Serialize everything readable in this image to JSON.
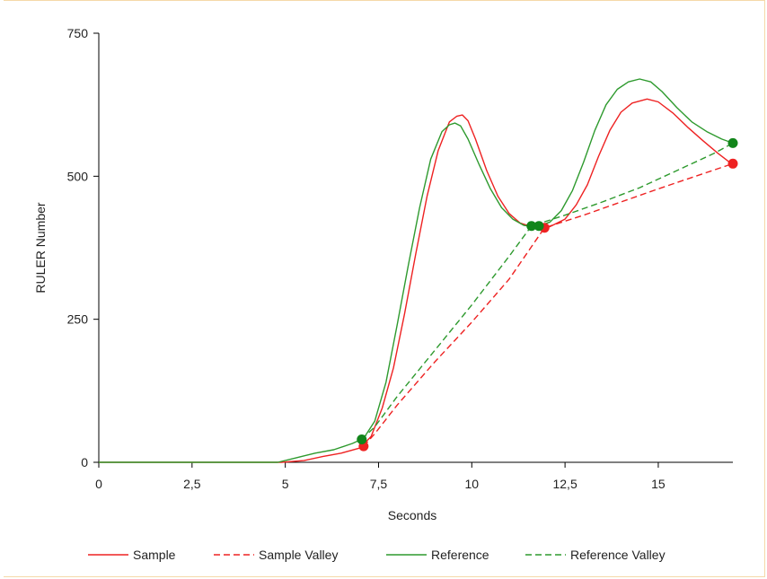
{
  "chart_data": {
    "type": "line",
    "title": "",
    "xlabel": "Seconds",
    "ylabel": "RULER Number",
    "xlim": [
      0,
      17
    ],
    "ylim": [
      0,
      750
    ],
    "x_ticks": [
      {
        "value": 0,
        "label": "0"
      },
      {
        "value": 2.5,
        "label": "2,5"
      },
      {
        "value": 5,
        "label": "5"
      },
      {
        "value": 7.5,
        "label": "7,5"
      },
      {
        "value": 10,
        "label": "10"
      },
      {
        "value": 12.5,
        "label": "12,5"
      },
      {
        "value": 15,
        "label": "15"
      }
    ],
    "y_ticks": [
      {
        "value": 0,
        "label": "0"
      },
      {
        "value": 250,
        "label": "250"
      },
      {
        "value": 500,
        "label": "500"
      },
      {
        "value": 750,
        "label": "750"
      }
    ],
    "grid": false,
    "legend_position": "bottom",
    "series": [
      {
        "name": "Sample",
        "color": "#ee2222",
        "dash": "solid",
        "x": [
          0,
          4.9,
          5.5,
          6.0,
          6.5,
          7.0,
          7.3,
          7.6,
          7.9,
          8.2,
          8.5,
          8.8,
          9.1,
          9.4,
          9.6,
          9.75,
          9.9,
          10.1,
          10.4,
          10.7,
          11.0,
          11.3,
          11.6,
          11.9,
          12.1,
          12.5,
          12.8,
          13.1,
          13.4,
          13.7,
          14.0,
          14.3,
          14.7,
          15.0,
          15.4,
          15.8,
          16.2,
          16.6,
          17.0
        ],
        "y": [
          0,
          0,
          3,
          10,
          16,
          25,
          45,
          95,
          165,
          260,
          365,
          465,
          545,
          595,
          605,
          607,
          597,
          565,
          510,
          465,
          435,
          418,
          412,
          410,
          412,
          425,
          450,
          485,
          535,
          580,
          612,
          628,
          635,
          630,
          610,
          585,
          562,
          540,
          520
        ]
      },
      {
        "name": "Sample Valley",
        "color": "#ee2222",
        "dash": "dashed",
        "x": [
          7.1,
          7.4,
          8.0,
          9.0,
          10.0,
          11.0,
          11.95,
          13.0,
          14.0,
          15.0,
          16.0,
          17.0
        ],
        "y": [
          28,
          50,
          100,
          175,
          245,
          320,
          410,
          432,
          455,
          478,
          500,
          522
        ]
      },
      {
        "name": "Reference",
        "color": "#2e9a2e",
        "dash": "solid",
        "x": [
          0,
          4.8,
          5.3,
          5.8,
          6.3,
          6.8,
          7.1,
          7.4,
          7.7,
          8.0,
          8.3,
          8.6,
          8.9,
          9.2,
          9.4,
          9.55,
          9.7,
          9.9,
          10.2,
          10.5,
          10.8,
          11.1,
          11.4,
          11.6,
          11.8,
          12.1,
          12.4,
          12.7,
          13.0,
          13.3,
          13.6,
          13.9,
          14.2,
          14.5,
          14.8,
          15.1,
          15.5,
          15.9,
          16.3,
          16.7,
          17.0
        ],
        "y": [
          0,
          0,
          8,
          16,
          22,
          33,
          42,
          72,
          140,
          240,
          345,
          445,
          530,
          578,
          590,
          593,
          588,
          565,
          520,
          478,
          445,
          425,
          414,
          412,
          413,
          420,
          440,
          475,
          525,
          580,
          625,
          652,
          665,
          670,
          665,
          648,
          620,
          595,
          578,
          565,
          558
        ]
      },
      {
        "name": "Reference Valley",
        "color": "#2e9a2e",
        "dash": "dashed",
        "x": [
          7.05,
          7.4,
          8.0,
          9.0,
          10.0,
          11.0,
          11.6,
          12.5,
          13.5,
          14.5,
          15.5,
          16.5,
          17.0
        ],
        "y": [
          40,
          62,
          115,
          195,
          275,
          360,
          413,
          432,
          455,
          480,
          510,
          540,
          558
        ]
      }
    ],
    "markers": [
      {
        "series": "Sample",
        "color": "#ee2222",
        "points": [
          [
            7.1,
            28
          ],
          [
            11.95,
            410
          ],
          [
            17.0,
            522
          ]
        ]
      },
      {
        "series": "Reference",
        "color": "#11851a",
        "points": [
          [
            7.05,
            40
          ],
          [
            11.6,
            413
          ],
          [
            11.8,
            413
          ],
          [
            17.0,
            558
          ]
        ]
      }
    ]
  }
}
